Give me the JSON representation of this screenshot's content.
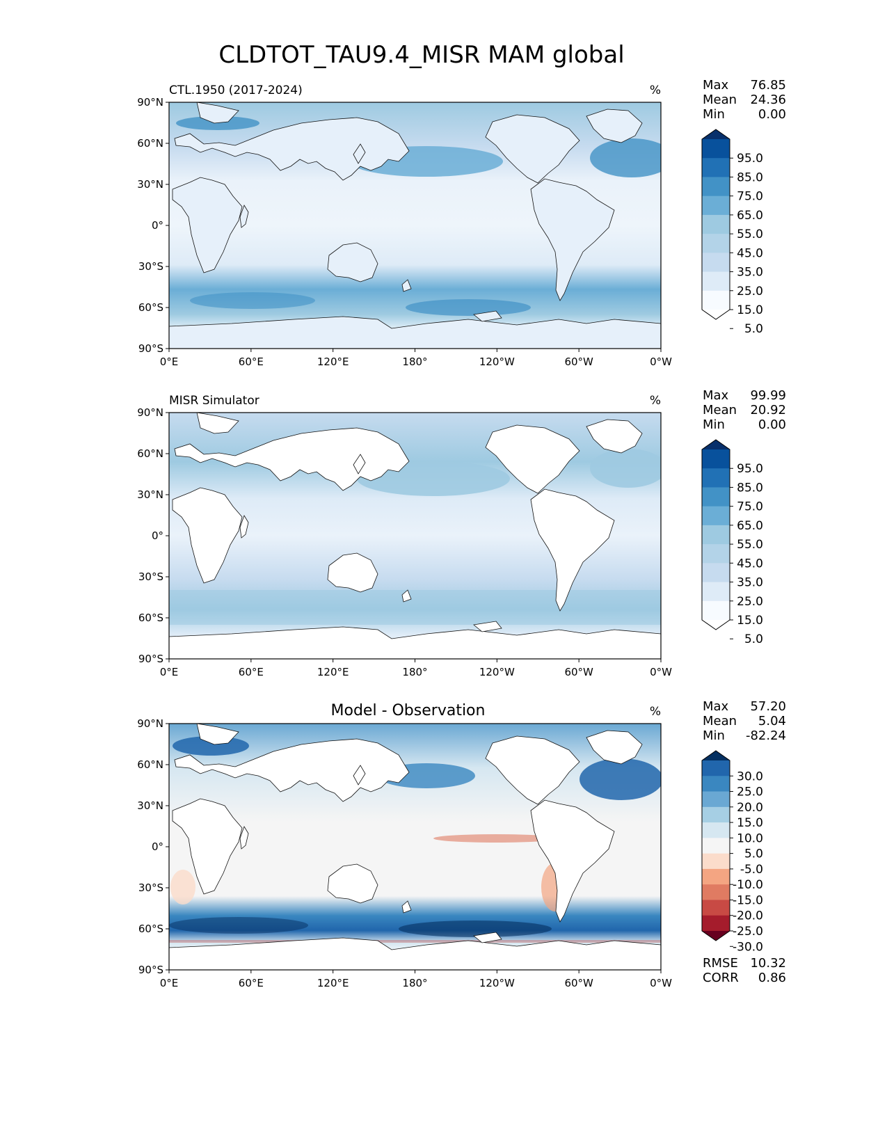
{
  "title": "CLDTOT_TAU9.4_MISR MAM global",
  "lat_ticks": [
    "90°N",
    "60°N",
    "30°N",
    "0°",
    "30°S",
    "60°S",
    "90°S"
  ],
  "lon_ticks": [
    "0°E",
    "60°E",
    "120°E",
    "180°",
    "120°W",
    "60°W",
    "0°W"
  ],
  "panels": [
    {
      "left_label": "CTL.1950 (2017-2024)",
      "center_label": "",
      "units": "%",
      "stats": [
        {
          "label": "Max",
          "value": "76.85"
        },
        {
          "label": "Mean",
          "value": "24.36"
        },
        {
          "label": "Min",
          "value": "0.00"
        }
      ],
      "colorbar": {
        "labels": [
          "95.0",
          "85.0",
          "75.0",
          "65.0",
          "55.0",
          "45.0",
          "35.0",
          "25.0",
          "15.0",
          "5.0"
        ],
        "colors": [
          "#08306b",
          "#08519c",
          "#2171b5",
          "#4292c6",
          "#6baed6",
          "#9ecae1",
          "#b3d3e8",
          "#c6dbef",
          "#deebf7",
          "#f7fbff",
          "#ffffff"
        ]
      },
      "footer": []
    },
    {
      "left_label": "MISR Simulator",
      "center_label": "",
      "units": "%",
      "stats": [
        {
          "label": "Max",
          "value": "99.99"
        },
        {
          "label": "Mean",
          "value": "20.92"
        },
        {
          "label": "Min",
          "value": "0.00"
        }
      ],
      "colorbar": {
        "labels": [
          "95.0",
          "85.0",
          "75.0",
          "65.0",
          "55.0",
          "45.0",
          "35.0",
          "25.0",
          "15.0",
          "5.0"
        ],
        "colors": [
          "#08306b",
          "#08519c",
          "#2171b5",
          "#4292c6",
          "#6baed6",
          "#9ecae1",
          "#b3d3e8",
          "#c6dbef",
          "#deebf7",
          "#f7fbff",
          "#ffffff"
        ]
      },
      "footer": []
    },
    {
      "left_label": "",
      "center_label": "Model - Observation",
      "units": "%",
      "stats": [
        {
          "label": "Max",
          "value": "57.20"
        },
        {
          "label": "Mean",
          "value": "5.04"
        },
        {
          "label": "Min",
          "value": "-82.24"
        }
      ],
      "colorbar": {
        "labels": [
          "30.0",
          "25.0",
          "20.0",
          "15.0",
          "10.0",
          "5.0",
          "-5.0",
          "-10.0",
          "-15.0",
          "-20.0",
          "-25.0",
          "-30.0"
        ],
        "colors": [
          "#053061",
          "#2166ac",
          "#3a87c0",
          "#6aa8d3",
          "#a6cfe4",
          "#d6e7f1",
          "#f5f5f5",
          "#fbdccb",
          "#f4a582",
          "#e07b62",
          "#c84a44",
          "#a51c2c",
          "#67001f"
        ]
      },
      "footer": [
        {
          "label": "RMSE",
          "value": "10.32"
        },
        {
          "label": "CORR",
          "value": "0.86"
        }
      ]
    }
  ]
}
